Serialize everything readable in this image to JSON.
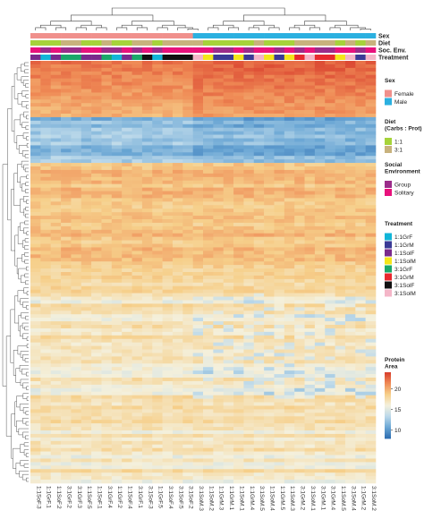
{
  "chart_data": {
    "type": "heatmap",
    "title": "",
    "samples": [
      "1:1SoF.3",
      "1:1GrF.1",
      "1:1SoF.2",
      "3:1GrF.2",
      "3:1GrF.3",
      "1:1SoF.5",
      "1:1SoF.1",
      "3:1GrF.4",
      "1:1GrF.2",
      "1:1SoF.4",
      "3:1GrF.1",
      "3:1SoF.3",
      "1:1GrF.5",
      "3:1SoF.4",
      "3:1SoF.5",
      "3:1SoF.2",
      "3:1SoM.3",
      "1:1SoM.2",
      "1:1GrM.3",
      "1:1GrM.1",
      "1:1SoM.1",
      "1:1GrM.4",
      "3:1SoM.5",
      "1:1SoM.4",
      "1:1GrM.5",
      "1:1SoM.3",
      "3:1GrM.2",
      "3:1SoM.1",
      "3:1GrM.1",
      "3:1GrM.4",
      "1:1SoM.5",
      "3:1SoM.4",
      "1:1GrM.2",
      "3:1SoM.2"
    ],
    "annotation_rows": [
      "Sex",
      "Diet",
      "Soc. Env.",
      "Treatment"
    ],
    "legends": [
      {
        "title_lines": [
          "Sex"
        ],
        "items": [
          {
            "label": "Female",
            "color": "#f0908c"
          },
          {
            "label": "Male",
            "color": "#2bb0e0"
          }
        ]
      },
      {
        "title_lines": [
          "Diet",
          "(Carbs : Prot)"
        ],
        "items": [
          {
            "label": "1:1",
            "color": "#a6d33a"
          },
          {
            "label": "3:1",
            "color": "#c8b27d"
          }
        ]
      },
      {
        "title_lines": [
          "Social",
          "Environment"
        ],
        "items": [
          {
            "label": "Group",
            "color": "#9b2c8a"
          },
          {
            "label": "Solitary",
            "color": "#e8127c"
          }
        ]
      },
      {
        "title_lines": [
          "Treatment"
        ],
        "items": [
          {
            "label": "1:1GrF",
            "color": "#11b5d8"
          },
          {
            "label": "1:1GrM",
            "color": "#3a3a96"
          },
          {
            "label": "1:1SolF",
            "color": "#7a2a8c"
          },
          {
            "label": "1:1SolM",
            "color": "#f4e61a"
          },
          {
            "label": "3:1GrF",
            "color": "#1aa86a"
          },
          {
            "label": "3:1GrM",
            "color": "#e8282e"
          },
          {
            "label": "3:1SolF",
            "color": "#111111"
          },
          {
            "label": "3:1SolM",
            "color": "#f4b6c8"
          }
        ]
      }
    ],
    "colorbar": {
      "title_lines": [
        "Protein",
        "Area"
      ],
      "ticks": [
        10,
        15,
        20
      ],
      "range": [
        8,
        24
      ],
      "colors": [
        "#2c6cb0",
        "#6aa6d4",
        "#bcd9ea",
        "#f4f0dc",
        "#f6cf8a",
        "#ef8a55",
        "#d83c2c"
      ]
    },
    "colors_note": {
      "low": "#2c6cb0",
      "high": "#d83c2c"
    }
  }
}
